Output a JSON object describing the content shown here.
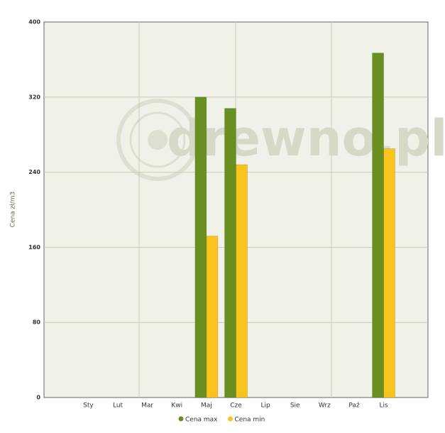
{
  "chart_data": {
    "type": "bar",
    "y_label": "Cena zł/m3",
    "watermark": "drewno.pl",
    "categories": [
      null,
      "Sty",
      "Lut",
      "Mar",
      "Kwi",
      "Maj",
      "Cze",
      "Lip",
      "Sie",
      "Wrz",
      "Paź",
      "Lis",
      null
    ],
    "series": [
      {
        "name": "Cena max",
        "color": "#679020",
        "values": [
          null,
          null,
          null,
          null,
          null,
          320,
          308,
          null,
          null,
          null,
          null,
          367,
          null
        ]
      },
      {
        "name": "Cena min",
        "color": "#f9c41e",
        "values": [
          null,
          null,
          null,
          null,
          null,
          172,
          248,
          null,
          null,
          null,
          null,
          265,
          null
        ]
      }
    ],
    "ylim": [
      0,
      400
    ],
    "yticks": [
      0,
      80,
      160,
      240,
      320,
      400
    ],
    "grid": true
  }
}
